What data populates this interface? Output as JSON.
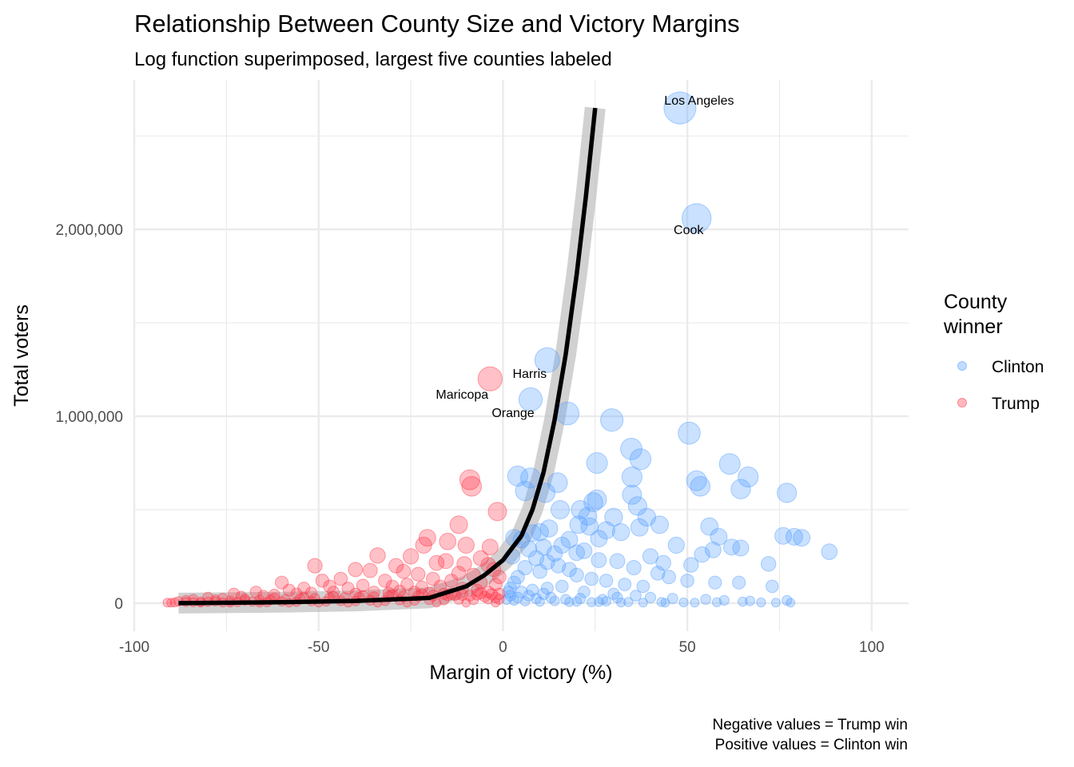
{
  "chart_data": {
    "type": "scatter",
    "title": "Relationship Between County Size and Victory Margins",
    "subtitle": "Log function superimposed, largest five counties labeled",
    "xlabel": "Margin of victory (%)",
    "ylabel": "Total voters",
    "xlim": [
      -100,
      110
    ],
    "ylim": [
      -150000,
      2800000
    ],
    "x_ticks": [
      {
        "value": -100,
        "label": "-100"
      },
      {
        "value": -50,
        "label": "-50"
      },
      {
        "value": 0,
        "label": "0"
      },
      {
        "value": 50,
        "label": "50"
      },
      {
        "value": 100,
        "label": "100"
      }
    ],
    "y_ticks": [
      {
        "value": 0,
        "label": "0"
      },
      {
        "value": 1000000,
        "label": "1,000,000"
      },
      {
        "value": 2000000,
        "label": "2,000,000"
      }
    ],
    "grid": true,
    "legend": {
      "title_lines": [
        "County",
        "winner"
      ],
      "position": "right",
      "entries": [
        {
          "label": "Clinton",
          "color": "#4f9bff"
        },
        {
          "label": "Trump",
          "color": "#ff3344"
        }
      ]
    },
    "series": [
      {
        "name": "Clinton",
        "color": "#4f9bff",
        "points": [
          [
            48,
            2650000
          ],
          [
            52.5,
            2060000
          ],
          [
            12,
            1300000
          ],
          [
            7.5,
            1090000
          ],
          [
            17.5,
            1015000
          ],
          [
            29.5,
            980000
          ],
          [
            50.5,
            910000
          ],
          [
            34.8,
            825000
          ],
          [
            37.3,
            770000
          ],
          [
            61.5,
            745000
          ],
          [
            25.5,
            750000
          ],
          [
            35,
            675000
          ],
          [
            66.5,
            675000
          ],
          [
            4,
            680000
          ],
          [
            7.5,
            670000
          ],
          [
            14.8,
            645000
          ],
          [
            52.5,
            655000
          ],
          [
            53.5,
            625000
          ],
          [
            64.5,
            610000
          ],
          [
            77,
            590000
          ],
          [
            11.5,
            590000
          ],
          [
            6,
            600000
          ],
          [
            35,
            580000
          ],
          [
            25.5,
            555000
          ],
          [
            24.5,
            540000
          ],
          [
            36.5,
            520000
          ],
          [
            15.5,
            500000
          ],
          [
            21,
            500000
          ],
          [
            23,
            465000
          ],
          [
            30,
            460000
          ],
          [
            39,
            460000
          ],
          [
            42.5,
            420000
          ],
          [
            20.5,
            420000
          ],
          [
            23.5,
            410000
          ],
          [
            12.5,
            400000
          ],
          [
            56,
            410000
          ],
          [
            37,
            405000
          ],
          [
            28,
            390000
          ],
          [
            32,
            380000
          ],
          [
            8,
            375000
          ],
          [
            10,
            380000
          ],
          [
            3,
            350000
          ],
          [
            5,
            340000
          ],
          [
            18,
            340000
          ],
          [
            26,
            345000
          ],
          [
            58.5,
            355000
          ],
          [
            76,
            360000
          ],
          [
            79,
            355000
          ],
          [
            81,
            350000
          ],
          [
            47,
            310000
          ],
          [
            62,
            300000
          ],
          [
            64.5,
            295000
          ],
          [
            88.5,
            275000
          ],
          [
            54,
            260000
          ],
          [
            40,
            250000
          ],
          [
            57,
            285000
          ],
          [
            22,
            280000
          ],
          [
            20,
            270000
          ],
          [
            14,
            265000
          ],
          [
            31,
            225000
          ],
          [
            43.5,
            215000
          ],
          [
            51,
            205000
          ],
          [
            72,
            210000
          ],
          [
            26,
            230000
          ],
          [
            9,
            240000
          ],
          [
            7,
            290000
          ],
          [
            11,
            300000
          ],
          [
            16,
            310000
          ],
          [
            2.5,
            250000
          ],
          [
            35.5,
            190000
          ],
          [
            42,
            160000
          ],
          [
            45,
            140000
          ],
          [
            50,
            120000
          ],
          [
            57.5,
            110000
          ],
          [
            64,
            110000
          ],
          [
            73,
            90000
          ],
          [
            38,
            90000
          ],
          [
            33,
            100000
          ],
          [
            28,
            120000
          ],
          [
            24,
            130000
          ],
          [
            20,
            150000
          ],
          [
            18,
            180000
          ],
          [
            15,
            200000
          ],
          [
            12,
            220000
          ],
          [
            10,
            170000
          ],
          [
            6,
            190000
          ],
          [
            4,
            140000
          ],
          [
            3,
            110000
          ],
          [
            2,
            80000
          ],
          [
            1.5,
            60000
          ],
          [
            5,
            60000
          ],
          [
            8,
            70000
          ],
          [
            12,
            80000
          ],
          [
            16,
            90000
          ],
          [
            22,
            60000
          ],
          [
            30,
            50000
          ],
          [
            36,
            40000
          ],
          [
            40,
            30000
          ],
          [
            46,
            25000
          ],
          [
            55,
            20000
          ],
          [
            60,
            15000
          ],
          [
            67,
            12000
          ],
          [
            77,
            15000
          ],
          [
            1,
            20000
          ],
          [
            3,
            15000
          ],
          [
            6,
            10000
          ],
          [
            10,
            8000
          ],
          [
            14,
            12000
          ],
          [
            18,
            6000
          ],
          [
            24,
            5000
          ],
          [
            28,
            10000
          ],
          [
            32,
            4000
          ],
          [
            43,
            6000
          ],
          [
            49,
            4000
          ],
          [
            58,
            5000
          ],
          [
            65,
            8000
          ],
          [
            70,
            4000
          ],
          [
            74,
            3000
          ],
          [
            78,
            2000
          ],
          [
            52,
            3000
          ],
          [
            44,
            2000
          ],
          [
            38,
            3000
          ],
          [
            34,
            6000
          ],
          [
            26,
            7000
          ],
          [
            20,
            9000
          ],
          [
            4,
            30000
          ],
          [
            7,
            40000
          ],
          [
            9,
            25000
          ],
          [
            13,
            30000
          ],
          [
            17,
            20000
          ],
          [
            21,
            25000
          ],
          [
            27,
            20000
          ],
          [
            31,
            30000
          ],
          [
            2,
            40000
          ],
          [
            11,
            50000
          ]
        ]
      },
      {
        "name": "Trump",
        "color": "#ff3344",
        "points": [
          [
            -3.5,
            1200000
          ],
          [
            -9,
            660000
          ],
          [
            -8.5,
            625000
          ],
          [
            -1.5,
            490000
          ],
          [
            -12,
            420000
          ],
          [
            -20.5,
            350000
          ],
          [
            -15,
            330000
          ],
          [
            -21.5,
            310000
          ],
          [
            -10,
            310000
          ],
          [
            -3.5,
            300000
          ],
          [
            -34,
            255000
          ],
          [
            -25,
            250000
          ],
          [
            -6,
            240000
          ],
          [
            -15.5,
            225000
          ],
          [
            -18,
            215000
          ],
          [
            -10.5,
            210000
          ],
          [
            -4,
            205000
          ],
          [
            -2.5,
            180000
          ],
          [
            -51,
            200000
          ],
          [
            -29,
            200000
          ],
          [
            -40,
            180000
          ],
          [
            -36,
            175000
          ],
          [
            -27,
            170000
          ],
          [
            -23,
            155000
          ],
          [
            -12,
            160000
          ],
          [
            -8,
            150000
          ],
          [
            -1,
            140000
          ],
          [
            -60,
            110000
          ],
          [
            -49,
            120000
          ],
          [
            -44,
            130000
          ],
          [
            -32,
            120000
          ],
          [
            -19,
            130000
          ],
          [
            -14,
            120000
          ],
          [
            -6,
            110000
          ],
          [
            -2,
            100000
          ],
          [
            -73,
            50000
          ],
          [
            -67,
            60000
          ],
          [
            -58,
            70000
          ],
          [
            -54,
            80000
          ],
          [
            -47,
            90000
          ],
          [
            -42,
            80000
          ],
          [
            -38,
            95000
          ],
          [
            -30,
            90000
          ],
          [
            -26,
            100000
          ],
          [
            -22,
            85000
          ],
          [
            -17,
            90000
          ],
          [
            -11,
            80000
          ],
          [
            -7,
            70000
          ],
          [
            -4,
            60000
          ],
          [
            -1,
            50000
          ],
          [
            -84,
            20000
          ],
          [
            -80,
            30000
          ],
          [
            -76,
            25000
          ],
          [
            -71,
            35000
          ],
          [
            -65,
            40000
          ],
          [
            -62,
            45000
          ],
          [
            -56,
            50000
          ],
          [
            -52,
            55000
          ],
          [
            -46,
            60000
          ],
          [
            -40,
            50000
          ],
          [
            -35,
            60000
          ],
          [
            -31,
            55000
          ],
          [
            -28,
            65000
          ],
          [
            -24,
            60000
          ],
          [
            -20,
            55000
          ],
          [
            -16,
            50000
          ],
          [
            -13,
            45000
          ],
          [
            -9,
            40000
          ],
          [
            -5,
            35000
          ],
          [
            -2,
            30000
          ],
          [
            -91,
            3000
          ],
          [
            -89,
            4000
          ],
          [
            -86,
            6000
          ],
          [
            -82,
            8000
          ],
          [
            -78,
            10000
          ],
          [
            -74,
            12000
          ],
          [
            -70,
            14000
          ],
          [
            -66,
            16000
          ],
          [
            -63,
            18000
          ],
          [
            -59,
            20000
          ],
          [
            -55,
            22000
          ],
          [
            -51,
            24000
          ],
          [
            -47,
            26000
          ],
          [
            -43,
            28000
          ],
          [
            -39,
            30000
          ],
          [
            -35,
            32000
          ],
          [
            -31,
            34000
          ],
          [
            -27,
            36000
          ],
          [
            -23,
            38000
          ],
          [
            -19,
            40000
          ],
          [
            -15,
            42000
          ],
          [
            -11,
            44000
          ],
          [
            -7,
            46000
          ],
          [
            -3,
            48000
          ],
          [
            -88,
            10000
          ],
          [
            -84,
            5000
          ],
          [
            -80,
            7000
          ],
          [
            -76,
            4000
          ],
          [
            -72,
            6000
          ],
          [
            -68,
            8000
          ],
          [
            -64,
            5000
          ],
          [
            -60,
            9000
          ],
          [
            -56,
            7000
          ],
          [
            -52,
            11000
          ],
          [
            -48,
            9000
          ],
          [
            -44,
            13000
          ],
          [
            -40,
            11000
          ],
          [
            -36,
            15000
          ],
          [
            -32,
            13000
          ],
          [
            -28,
            17000
          ],
          [
            -24,
            15000
          ],
          [
            -20,
            19000
          ],
          [
            -16,
            17000
          ],
          [
            -12,
            21000
          ],
          [
            -8,
            19000
          ],
          [
            -4,
            23000
          ],
          [
            -1,
            21000
          ],
          [
            -86,
            15000
          ],
          [
            -78,
            18000
          ],
          [
            -70,
            22000
          ],
          [
            -62,
            26000
          ],
          [
            -54,
            30000
          ],
          [
            -46,
            34000
          ],
          [
            -38,
            38000
          ],
          [
            -30,
            42000
          ],
          [
            -22,
            46000
          ],
          [
            -14,
            50000
          ],
          [
            -6,
            54000
          ],
          [
            -90,
            2000
          ],
          [
            -82,
            3000
          ],
          [
            -74,
            2000
          ],
          [
            -66,
            3000
          ],
          [
            -58,
            2000
          ],
          [
            -50,
            3000
          ],
          [
            -42,
            2000
          ],
          [
            -34,
            3000
          ],
          [
            -26,
            2000
          ],
          [
            -18,
            3000
          ],
          [
            -10,
            2000
          ],
          [
            -2,
            3000
          ]
        ]
      }
    ],
    "labeled_points": [
      {
        "label": "Los Angeles",
        "x": 48,
        "y": 2650000
      },
      {
        "label": "Cook",
        "x": 52.5,
        "y": 2060000
      },
      {
        "label": "Harris",
        "x": 12,
        "y": 1300000
      },
      {
        "label": "Maricopa",
        "x": -3.5,
        "y": 1200000
      },
      {
        "label": "Orange",
        "x": 7.5,
        "y": 1090000
      }
    ],
    "fit_line": {
      "type": "log function",
      "points": [
        [
          -88,
          0
        ],
        [
          -60,
          5000
        ],
        [
          -40,
          12000
        ],
        [
          -20,
          28000
        ],
        [
          -10,
          90000
        ],
        [
          -5,
          150000
        ],
        [
          0,
          230000
        ],
        [
          5,
          360000
        ],
        [
          8,
          500000
        ],
        [
          11,
          700000
        ],
        [
          14,
          980000
        ],
        [
          17,
          1330000
        ],
        [
          20,
          1760000
        ],
        [
          22.5,
          2180000
        ],
        [
          25,
          2650000
        ]
      ]
    },
    "caption_lines": [
      "Negative values = Trump win",
      "Positive values = Clinton win"
    ]
  }
}
